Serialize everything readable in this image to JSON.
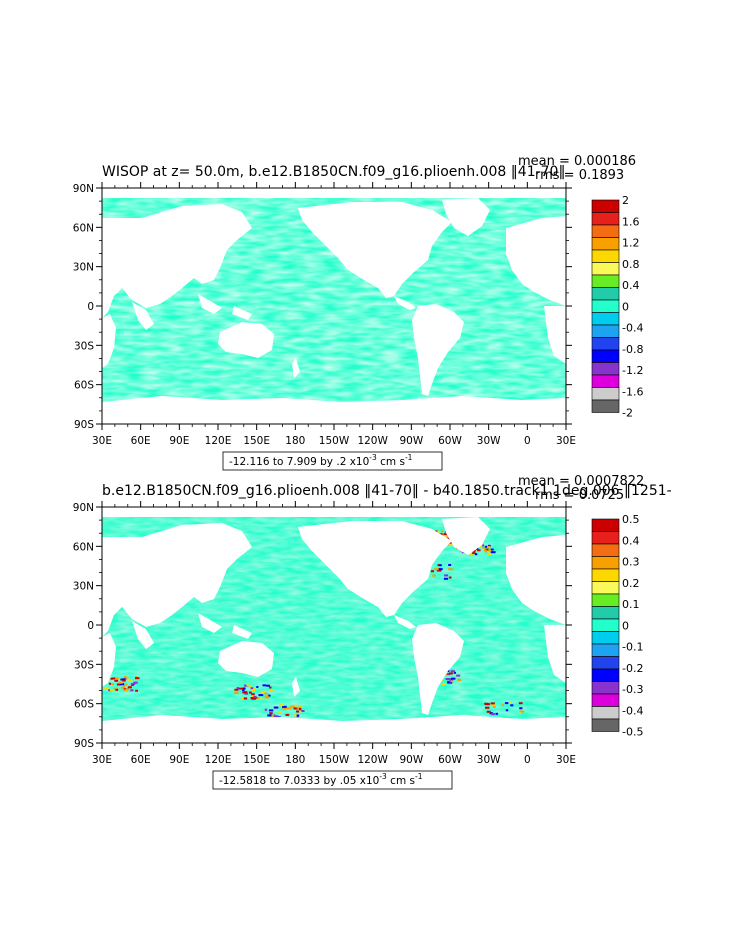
{
  "land_color": "#ffffff",
  "frame_color": "#000000",
  "panels": [
    {
      "title": "WISOP at z=  50.0m, b.e12.B1850CN.f09_g16.plioenh.008 ‖41-70‖",
      "mean_text": "mean = 0.000186",
      "rms_text": "rms = 0.1893",
      "range_text": "-12.116 to 7.909 by .2 x10",
      "range_exp": "-3",
      "range_units": " cm s",
      "range_units_exp": "-1",
      "colorbar_labels": [
        "2",
        "1.6",
        "1.2",
        "0.8",
        "0.4",
        "0",
        "-0.4",
        "-0.8",
        "-1.2",
        "-1.6",
        "-2"
      ],
      "colorbar_colors": [
        "#cc0000",
        "#e8201c",
        "#f46d12",
        "#f7a000",
        "#fcd700",
        "#f9f95a",
        "#66ee22",
        "#22ccaa",
        "#22ffcc",
        "#00ccee",
        "#1ea3f0",
        "#2244ee",
        "#0000ff",
        "#8833cc",
        "#dd00dd",
        "#cccccc",
        "#666666"
      ]
    },
    {
      "title": "b.e12.B1850CN.f09_g16.plioenh.008 ‖41-70‖ - b40.1850.track1.1deg.006 ‖1251-",
      "mean_text": "mean = 0.0007822",
      "rms_text": "rms = 0.0725",
      "range_text": "-12.5818 to 7.0333 by .05 x10",
      "range_exp": "-3",
      "range_units": " cm s",
      "range_units_exp": "-1",
      "colorbar_labels": [
        "0.5",
        "0.4",
        "0.3",
        "0.2",
        "0.1",
        "0",
        "-0.1",
        "-0.2",
        "-0.3",
        "-0.4",
        "-0.5"
      ],
      "colorbar_colors": [
        "#cc0000",
        "#e8201c",
        "#f46d12",
        "#f7a000",
        "#fcd700",
        "#f9f95a",
        "#66ee22",
        "#22ccaa",
        "#22ffcc",
        "#00ccee",
        "#1ea3f0",
        "#2244ee",
        "#0000ff",
        "#8833cc",
        "#dd00dd",
        "#cccccc",
        "#666666"
      ]
    }
  ],
  "chart_data": [
    {
      "type": "heatmap",
      "title": "WISOP at z=  50.0m, b.e12.B1850CN.f09_g16.plioenh.008 ‖41-70‖",
      "x_tick_labels": [
        "30E",
        "60E",
        "90E",
        "120E",
        "150E",
        "180",
        "150W",
        "120W",
        "90W",
        "60W",
        "30W",
        "0",
        "30E"
      ],
      "y_tick_labels": [
        "90N",
        "60N",
        "30N",
        "0",
        "30S",
        "60S",
        "90S"
      ],
      "xlim": [
        30,
        390
      ],
      "ylim": [
        -90,
        90
      ],
      "colorbar_levels": [
        -2,
        -1.6,
        -1.2,
        -0.8,
        -0.4,
        0,
        0.4,
        0.8,
        1.2,
        1.6,
        2
      ],
      "mean": 0.000186,
      "rms": 0.1893,
      "min": -12.116,
      "max": 7.909,
      "interval": 0.2
    },
    {
      "type": "heatmap",
      "title": "b.e12.B1850CN.f09_g16.plioenh.008 ‖41-70‖ - b40.1850.track1.1deg.006 ‖1251-",
      "x_tick_labels": [
        "30E",
        "60E",
        "90E",
        "120E",
        "150E",
        "180",
        "150W",
        "120W",
        "90W",
        "60W",
        "30W",
        "0",
        "30E"
      ],
      "y_tick_labels": [
        "90N",
        "60N",
        "30N",
        "0",
        "30S",
        "60S",
        "90S"
      ],
      "xlim": [
        30,
        390
      ],
      "ylim": [
        -90,
        90
      ],
      "colorbar_levels": [
        -0.5,
        -0.4,
        -0.3,
        -0.2,
        -0.1,
        0,
        0.1,
        0.2,
        0.3,
        0.4,
        0.5
      ],
      "mean": 0.0007822,
      "rms": 0.0725,
      "min": -12.5818,
      "max": 7.0333,
      "interval": 0.05
    }
  ]
}
